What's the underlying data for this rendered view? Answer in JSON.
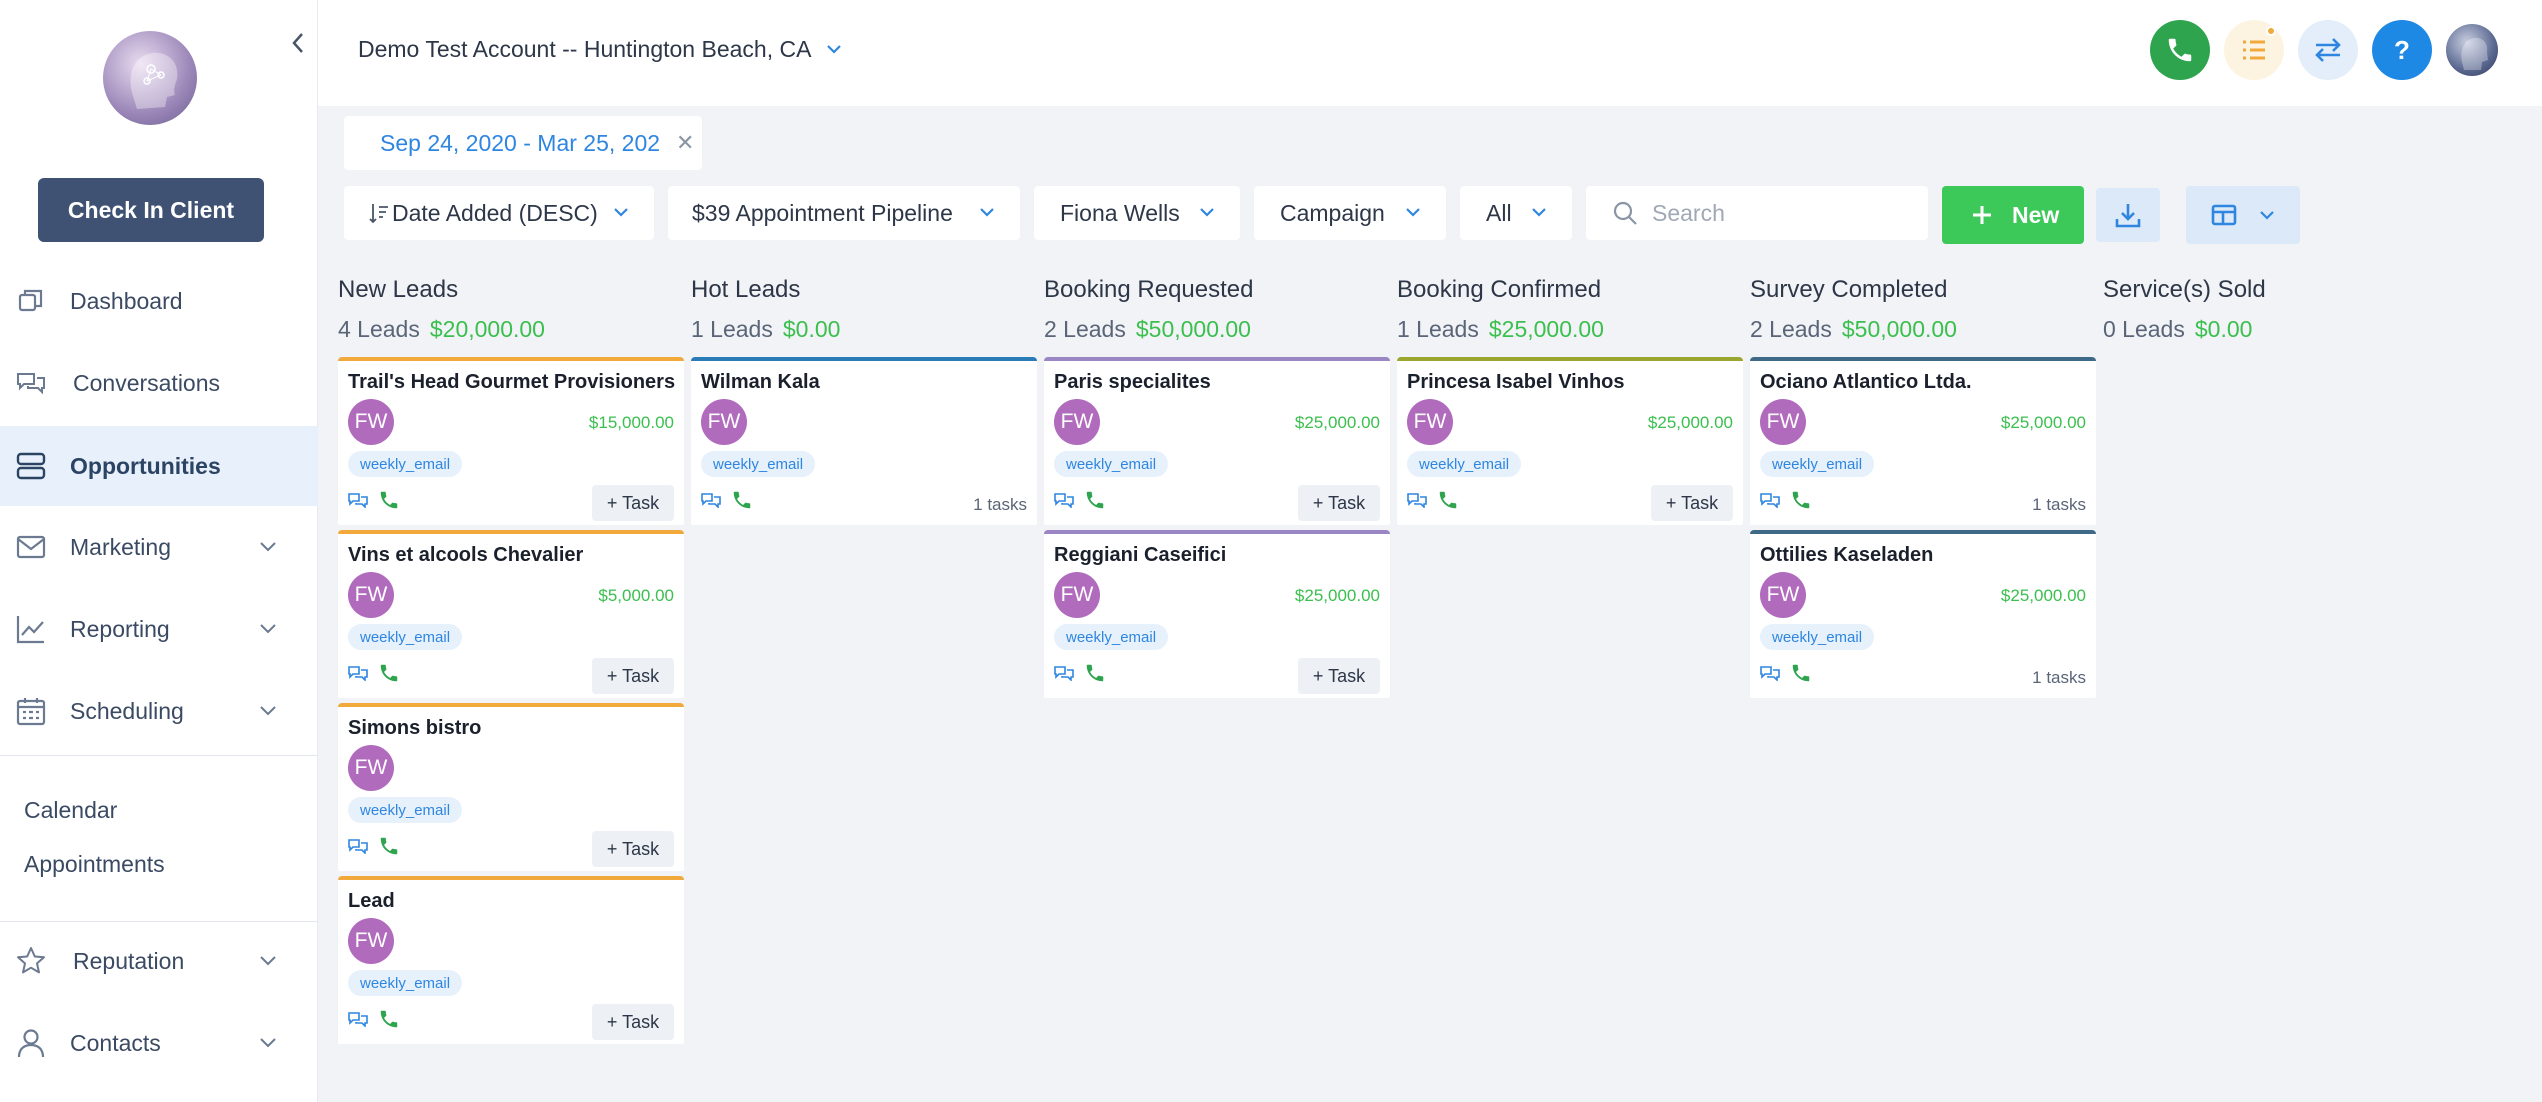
{
  "sidebar": {
    "check_in_label": "Check In Client",
    "nav": [
      {
        "label": "Dashboard",
        "icon": "dashboard-icon"
      },
      {
        "label": "Conversations",
        "icon": "chat-icon"
      },
      {
        "label": "Opportunities",
        "icon": "opportunities-icon",
        "active": true
      },
      {
        "label": "Marketing",
        "icon": "mail-icon"
      },
      {
        "label": "Reporting",
        "icon": "chart-icon"
      },
      {
        "label": "Scheduling",
        "icon": "calendar-icon"
      }
    ],
    "sub": [
      "Calendar",
      "Appointments"
    ],
    "nav2": [
      {
        "label": "Reputation",
        "icon": "star-icon"
      },
      {
        "label": "Contacts",
        "icon": "person-icon"
      }
    ]
  },
  "header": {
    "account": "Demo Test Account -- Huntington Beach, CA",
    "colors": {
      "phone": "#2ea44f",
      "tasks": "#fdf3e1",
      "switch": "#e3eefa",
      "help": "#1e88e5"
    }
  },
  "filters": {
    "date_range": "Sep 24, 2020 - Mar 25, 202",
    "sort": "Date Added (DESC)",
    "pipeline": "$39 Appointment Pipeline",
    "user": "Fiona Wells",
    "campaign": "Campaign",
    "status": "All",
    "search_placeholder": "Search",
    "new_label": "New"
  },
  "columns": [
    {
      "title": "New Leads",
      "count": "4 Leads",
      "amount": "$20,000.00"
    },
    {
      "title": "Hot Leads",
      "count": "1 Leads",
      "amount": "$0.00"
    },
    {
      "title": "Booking Requested",
      "count": "2 Leads",
      "amount": "$50,000.00"
    },
    {
      "title": "Booking Confirmed",
      "count": "1 Leads",
      "amount": "$25,000.00"
    },
    {
      "title": "Survey Completed",
      "count": "2 Leads",
      "amount": "$50,000.00"
    },
    {
      "title": "Service(s) Sold",
      "count": "0 Leads",
      "amount": "$0.00"
    }
  ],
  "cards": {
    "c0": [
      {
        "name": "Trail's Head Gourmet Provisioners",
        "initials": "FW",
        "value": "$15,000.00",
        "tag": "weekly_email",
        "task": "+ Task"
      },
      {
        "name": "Vins et alcools Chevalier",
        "initials": "FW",
        "value": "$5,000.00",
        "tag": "weekly_email",
        "task": "+ Task"
      },
      {
        "name": "Simons bistro",
        "initials": "FW",
        "tag": "weekly_email",
        "task": "+ Task"
      },
      {
        "name": "Lead",
        "initials": "FW",
        "tag": "weekly_email",
        "task": "+ Task"
      }
    ],
    "c1": [
      {
        "name": "Wilman Kala",
        "initials": "FW",
        "tag": "weekly_email",
        "tasks": "1 tasks"
      }
    ],
    "c2": [
      {
        "name": "Paris specialites",
        "initials": "FW",
        "value": "$25,000.00",
        "tag": "weekly_email",
        "task": "+ Task"
      },
      {
        "name": "Reggiani Caseifici",
        "initials": "FW",
        "value": "$25,000.00",
        "tag": "weekly_email",
        "task": "+ Task"
      }
    ],
    "c3": [
      {
        "name": "Princesa Isabel Vinhos",
        "initials": "FW",
        "value": "$25,000.00",
        "tag": "weekly_email",
        "task": "+ Task"
      }
    ],
    "c4": [
      {
        "name": "Ociano Atlantico Ltda.",
        "initials": "FW",
        "value": "$25,000.00",
        "tag": "weekly_email",
        "tasks": "1 tasks"
      },
      {
        "name": "Ottilies Kaseladen",
        "initials": "FW",
        "value": "$25,000.00",
        "tag": "weekly_email",
        "tasks": "1 tasks"
      }
    ]
  },
  "stage_colors": {
    "new": "#f2a93b",
    "hot": "#2b7bb9",
    "booking_requested": "#9a86c2",
    "booking_confirmed": "#9aa62e",
    "survey_completed": "#3e6a88"
  }
}
